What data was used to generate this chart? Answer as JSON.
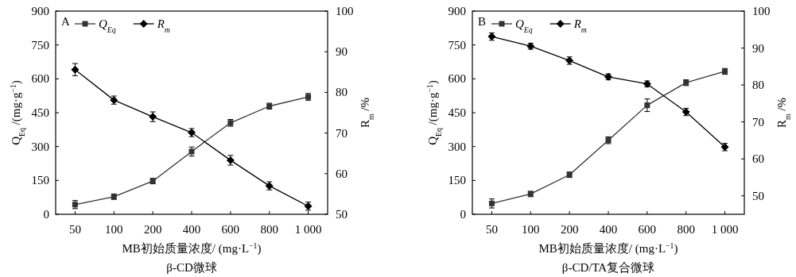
{
  "chart_data": [
    {
      "type": "line",
      "title": "A",
      "xlabel": "MB初始质量浓度/ (mg·L$^{−1}$)",
      "ylabel": "Q$_{Eq}$ /(mg·g$^{−1}$)",
      "y2label": "R$_{m}$ /%",
      "annotations": [
        "β-CD微球"
      ],
      "categories": [
        "50",
        "100",
        "200",
        "400",
        "600",
        "800",
        "1 000"
      ],
      "series": [
        {
          "name": "Q$_{Eq}$",
          "color": "#333333",
          "marker": "square",
          "values": [
            43,
            78,
            147,
            278,
            405,
            479,
            520
          ],
          "errors": [
            18,
            12,
            12,
            20,
            15,
            13,
            15
          ]
        },
        {
          "name": "R$_{m}$",
          "color": "#000000",
          "marker": "diamond",
          "axis": "y2",
          "values": [
            85.6,
            78.1,
            74.0,
            70.1,
            63.3,
            57.0,
            52.0
          ],
          "errors": [
            1.5,
            1,
            1.2,
            1,
            1.2,
            1,
            1
          ]
        }
      ],
      "ylim": [
        0,
        900
      ],
      "yticks": [
        0,
        150,
        300,
        450,
        600,
        750,
        900
      ],
      "y2lim": [
        50,
        100
      ],
      "y2ticks": [
        50,
        60,
        70,
        80,
        90,
        100
      ],
      "legend": "top left"
    },
    {
      "type": "line",
      "title": "B",
      "xlabel": "MB初始质量浓度/ (mg·L$^{−1}$)",
      "ylabel": "Q$_{Eq}$ /(mg·g$^{−1}$)",
      "y2label": "R$_{m}$ /%",
      "annotations": [
        "β-CD/TA复合微球"
      ],
      "categories": [
        "50",
        "100",
        "200",
        "400",
        "600",
        "800",
        "1 000"
      ],
      "series": [
        {
          "name": "Q$_{Eq}$",
          "color": "#333333",
          "marker": "square",
          "values": [
            48,
            90,
            175,
            328,
            483,
            583,
            633
          ],
          "errors": [
            20,
            12,
            12,
            15,
            28,
            13,
            13
          ]
        },
        {
          "name": "R$_{m}$",
          "color": "#000000",
          "marker": "diamond",
          "axis": "y2",
          "values": [
            93.1,
            90.5,
            86.6,
            82.2,
            80.3,
            72.7,
            63.2
          ],
          "errors": [
            1,
            0.8,
            1,
            0.8,
            0.8,
            1,
            1
          ]
        }
      ],
      "ylim": [
        0,
        900
      ],
      "yticks": [
        0,
        150,
        300,
        450,
        600,
        750,
        900
      ],
      "y2lim": [
        45,
        100
      ],
      "y2ticks": [
        50,
        60,
        70,
        80,
        90,
        100
      ],
      "legend": "top left"
    }
  ]
}
